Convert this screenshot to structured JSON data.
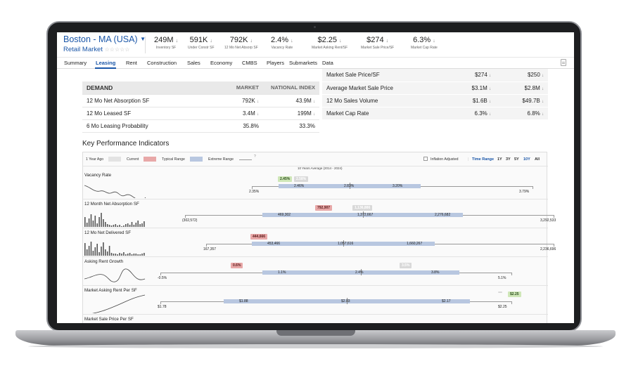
{
  "header": {
    "market": "Boston - MA (USA)",
    "submarket": "Retail Market",
    "stars": "☆☆☆☆☆",
    "stats": [
      {
        "value": "249M",
        "arrow": "↓",
        "label": "Inventory SF"
      },
      {
        "value": "591K",
        "arrow": "↓",
        "label": "Under Constr SF"
      },
      {
        "value": "792K",
        "arrow": "↓",
        "label": "12 Mo Net Absorp SF"
      },
      {
        "value": "2.4%",
        "arrow": "↓",
        "label": "Vacancy Rate"
      },
      {
        "value": "$2.25",
        "arrow": "↓",
        "label": "Market Asking Rent/SF"
      },
      {
        "value": "$274",
        "arrow": "↓",
        "label": "Market Sale Price/SF"
      },
      {
        "value": "6.3%",
        "arrow": "↓",
        "label": "Market Cap Rate"
      }
    ]
  },
  "tabs": [
    "Summary",
    "Leasing",
    "Rent",
    "Construction",
    "Sales",
    "Economy",
    "CMBS",
    "Players",
    "Submarkets",
    "Data"
  ],
  "active_tab": "Leasing",
  "demand": {
    "headers": [
      "DEMAND",
      "MARKET",
      "NATIONAL INDEX"
    ],
    "rows": [
      {
        "label": "12 Mo Net Absorption SF",
        "market": "792K",
        "market_arrow": "↓",
        "national": "43.9M",
        "national_arrow": "↓"
      },
      {
        "label": "12 Mo Leased SF",
        "market": "3.4M",
        "market_arrow": "↓",
        "national": "199M",
        "national_arrow": "↓"
      },
      {
        "label": "6 Mo Leasing Probability",
        "market": "35.8%",
        "market_arrow": "",
        "national": "33.3%",
        "national_arrow": ""
      }
    ]
  },
  "sales": {
    "rows": [
      {
        "label": "Market Sale Price/SF",
        "market": "$274",
        "market_arrow": "↓",
        "national": "$250",
        "national_arrow": "↓"
      },
      {
        "label": "Average Market Sale Price",
        "market": "$3.1M",
        "market_arrow": "↓",
        "national": "$2.8M",
        "national_arrow": "↓"
      },
      {
        "label": "12 Mo Sales Volume",
        "market": "$1.6B",
        "market_arrow": "↓",
        "national": "$49.7B",
        "national_arrow": "↓"
      },
      {
        "label": "Market Cap Rate",
        "market": "6.3%",
        "market_arrow": "↓",
        "national": "6.8%",
        "national_arrow": "↓"
      }
    ]
  },
  "kpi": {
    "title": "Key Performance Indicators",
    "legend": {
      "year_ago": "1 Year Ago",
      "current": "Current",
      "typical": "Typical Range",
      "extreme": "Extreme Range"
    },
    "inflation_label": "Inflation Adjusted",
    "time_range_label": "Time Range",
    "ranges": [
      "1Y",
      "3Y",
      "5Y",
      "10Y",
      "All"
    ],
    "selected_range": "10Y",
    "avg_label": "10 Years Average (2014 - 2024)",
    "rows": [
      {
        "title": "Vacancy Rate",
        "extreme_min": "2.35%",
        "extreme_max": "3.79%",
        "typ_low": "2.46%",
        "avg": "2.83%",
        "typ_high": "3.20%",
        "current": "2.45%",
        "year_ago": "2.58%"
      },
      {
        "title": "12 Month Net Absorption SF",
        "extreme_min": "(302,572)",
        "extreme_max": "3,292,533",
        "typ_low": "469,302",
        "avg": "1,372,667",
        "typ_high": "2,276,682",
        "current": "792,907",
        "year_ago": "1,136,886"
      },
      {
        "title": "12 Mo Net Delivered SF",
        "extreme_min": "167,357",
        "extreme_max": "2,236,696",
        "typ_low": "453,466",
        "avg": "1,057,616",
        "typ_high": "1,660,267",
        "current": "444,666",
        "year_ago": ""
      },
      {
        "title": "Asking Rent Growth",
        "extreme_min": "-0.5%",
        "extreme_max": "5.1%",
        "typ_low": "1.1%",
        "avg": "2.4%",
        "typ_high": "3.8%",
        "current": "0.6%",
        "year_ago": "3.5%"
      },
      {
        "title": "Market Asking Rent Per SF",
        "extreme_min": "$1.78",
        "extreme_max": "$2.25",
        "typ_low": "$1.88",
        "avg": "$2.03",
        "typ_high": "$2.17",
        "current": "$2.25",
        "year_ago": ""
      },
      {
        "title": "Market Sale Price Per SF",
        "extreme_min": "",
        "extreme_max": "",
        "typ_low": "",
        "avg": "",
        "typ_high": "",
        "current": "",
        "year_ago": ""
      }
    ]
  }
}
